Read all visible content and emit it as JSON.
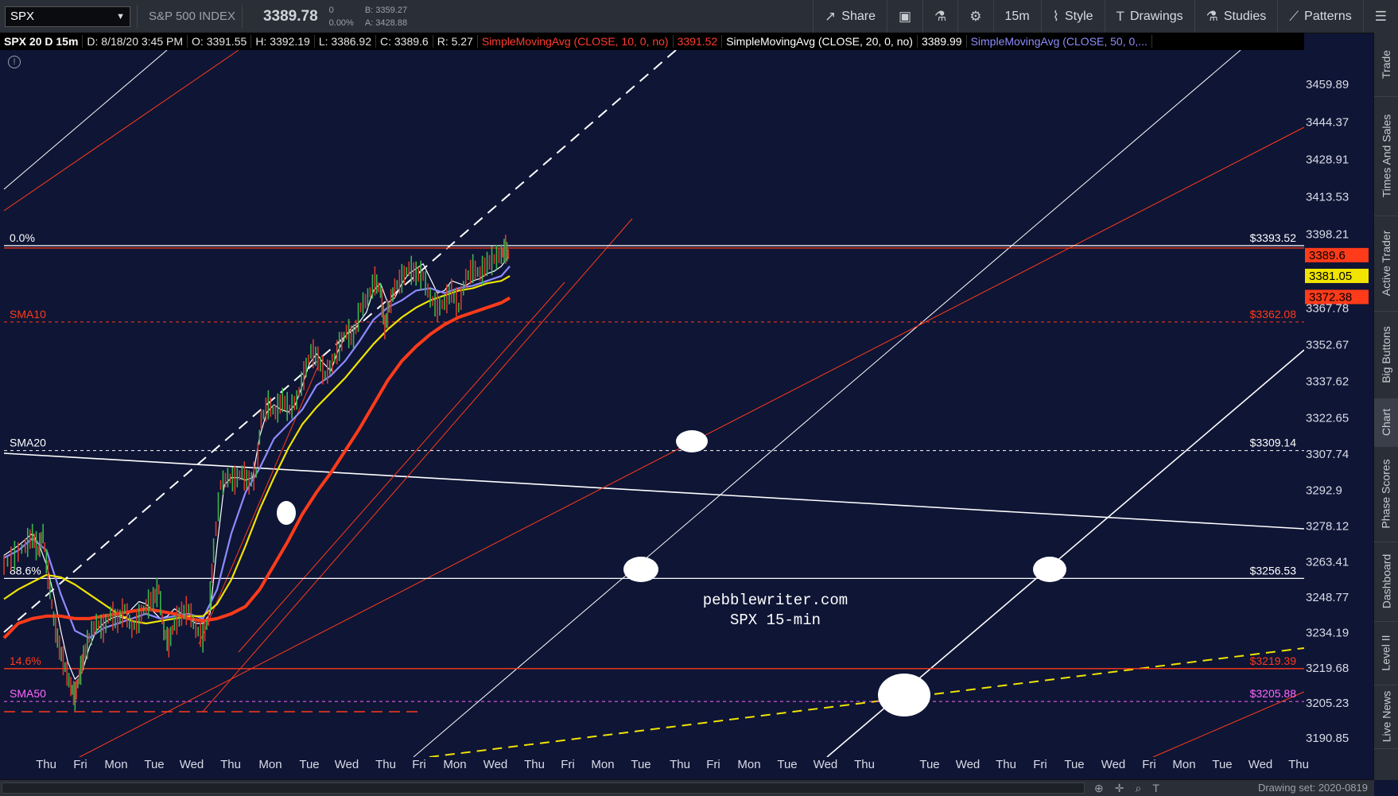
{
  "toolbar": {
    "symbol": "SPX",
    "index_name": "S&P 500 INDEX",
    "last": "3389.78",
    "change": "0",
    "change_pct": "0.00%",
    "bid": "B: 3359.27",
    "ask": "A: 3428.88",
    "share": "Share",
    "timeframe": "15m",
    "style": "Style",
    "drawings": "Drawings",
    "studies": "Studies",
    "patterns": "Patterns"
  },
  "infobar": {
    "symbol": "SPX 20 D 15m",
    "date": "D: 8/18/20 3:45 PM",
    "open": "O: 3391.55",
    "high": "H: 3392.19",
    "low": "L: 3386.92",
    "close": "C: 3389.6",
    "range": "R: 5.27",
    "sma10": "SimpleMovingAvg (CLOSE, 10, 0, no)",
    "sma10_val": "3391.52",
    "sma20": "SimpleMovingAvg (CLOSE, 20, 0, no)",
    "sma20_val": "3389.99",
    "sma50": "SimpleMovingAvg (CLOSE, 50, 0,..."
  },
  "watermark": {
    "line1": "pebblewriter.com",
    "line2": "SPX 15-min"
  },
  "rail": [
    "Trade",
    "Times And Sales",
    "Active Trader",
    "Big Buttons",
    "Chart",
    "Phase Scores",
    "Dashboard",
    "Level II",
    "Live News"
  ],
  "status": {
    "drawing_set": "Drawing set: 2020-0819"
  },
  "colors": {
    "background": "#0f1535",
    "sma10": "#ff3b1a",
    "sma20": "#ffffff",
    "sma50": "#ffffff",
    "sma_yellow": "#f0e400",
    "sma_blue": "#8c8cff",
    "price_tag_red": "#ff3b1a",
    "price_tag_yellow": "#f0e400"
  },
  "chart_data": {
    "type": "line",
    "y_ticks": [
      3459.89,
      3444.37,
      3428.91,
      3413.53,
      3398.21,
      3367.78,
      3352.67,
      3337.62,
      3322.65,
      3307.74,
      3292.9,
      3278.12,
      3263.41,
      3248.77,
      3234.19,
      3219.68,
      3205.23,
      3190.85
    ],
    "ylim": [
      3183,
      3474
    ],
    "x_ticks": [
      "Thu",
      "Fri",
      "Mon",
      "Tue",
      "Wed",
      "Thu",
      "Mon",
      "Tue",
      "Wed",
      "Thu",
      "Fri",
      "Mon",
      "Wed",
      "Thu",
      "Fri",
      "Mon",
      "Tue",
      "Thu",
      "Fri",
      "Mon",
      "Tue",
      "Wed",
      "Thu",
      "Tue",
      "Wed",
      "Thu",
      "Fri",
      "Tue",
      "Wed",
      "Fri",
      "Mon",
      "Tue",
      "Wed",
      "Thu"
    ],
    "price_tags": [
      {
        "value": 3389.6,
        "label": "3389.6",
        "color": "#ff3b1a"
      },
      {
        "value": 3381.05,
        "label": "3381.05",
        "color": "#f0e400"
      },
      {
        "value": 3372.38,
        "label": "3372.38",
        "color": "#ff3b1a"
      }
    ],
    "levels": [
      {
        "value": 3393.52,
        "label": "$3393.52",
        "left_label": "0.0%",
        "color": "#ffffff",
        "style": "solid"
      },
      {
        "value": 3362.08,
        "label": "$3362.08",
        "left_label": "SMA10",
        "color": "#ff3b1a",
        "style": "dashed"
      },
      {
        "value": 3309.14,
        "label": "$3309.14",
        "left_label": "SMA20",
        "color": "#ffffff",
        "style": "dashed"
      },
      {
        "value": 3256.53,
        "label": "$3256.53",
        "left_label": "88.6%",
        "color": "#ffffff",
        "style": "solid"
      },
      {
        "value": 3219.39,
        "label": "$3219.39",
        "left_label": "14.6%",
        "color": "#ff3b1a",
        "style": "solid"
      },
      {
        "value": 3205.88,
        "label": "$3205.88",
        "left_label": "SMA50",
        "color": "#ff66ff",
        "style": "dashed"
      }
    ],
    "series": [
      {
        "name": "SMA10",
        "color": "#ffffff",
        "points": [
          [
            0,
            3266
          ],
          [
            20,
            3270
          ],
          [
            40,
            3275
          ],
          [
            50,
            3270
          ],
          [
            60,
            3262
          ],
          [
            70,
            3250
          ],
          [
            80,
            3235
          ],
          [
            90,
            3222
          ],
          [
            100,
            3215
          ],
          [
            110,
            3218
          ],
          [
            120,
            3228
          ],
          [
            130,
            3235
          ],
          [
            140,
            3238
          ],
          [
            150,
            3240
          ],
          [
            160,
            3241
          ],
          [
            170,
            3240
          ],
          [
            180,
            3244
          ],
          [
            190,
            3247
          ],
          [
            200,
            3246
          ],
          [
            210,
            3243
          ],
          [
            220,
            3240
          ],
          [
            230,
            3241
          ],
          [
            240,
            3244
          ],
          [
            250,
            3242
          ],
          [
            260,
            3240
          ],
          [
            270,
            3238
          ],
          [
            280,
            3238
          ],
          [
            290,
            3242
          ],
          [
            300,
            3270
          ],
          [
            310,
            3295
          ],
          [
            320,
            3298
          ],
          [
            330,
            3298
          ],
          [
            340,
            3297
          ],
          [
            350,
            3298
          ],
          [
            360,
            3315
          ],
          [
            370,
            3325
          ],
          [
            380,
            3328
          ],
          [
            390,
            3326
          ],
          [
            400,
            3325
          ],
          [
            410,
            3328
          ],
          [
            420,
            3336
          ],
          [
            430,
            3345
          ],
          [
            440,
            3349
          ],
          [
            450,
            3345
          ],
          [
            460,
            3342
          ],
          [
            470,
            3350
          ],
          [
            480,
            3356
          ],
          [
            490,
            3360
          ],
          [
            500,
            3362
          ],
          [
            510,
            3366
          ],
          [
            520,
            3375
          ],
          [
            530,
            3378
          ],
          [
            540,
            3370
          ],
          [
            550,
            3372
          ],
          [
            560,
            3378
          ],
          [
            570,
            3382
          ],
          [
            580,
            3384
          ],
          [
            590,
            3386
          ],
          [
            600,
            3380
          ],
          [
            610,
            3374
          ],
          [
            620,
            3375
          ],
          [
            630,
            3379
          ],
          [
            640,
            3378
          ],
          [
            650,
            3377
          ],
          [
            660,
            3379
          ],
          [
            670,
            3380
          ],
          [
            680,
            3382
          ],
          [
            690,
            3383
          ],
          [
            700,
            3385
          ],
          [
            710,
            3389
          ]
        ]
      },
      {
        "name": "SMA20",
        "color": "#8c8cff",
        "points": [
          [
            0,
            3265
          ],
          [
            20,
            3268
          ],
          [
            40,
            3273
          ],
          [
            60,
            3268
          ],
          [
            80,
            3250
          ],
          [
            100,
            3235
          ],
          [
            120,
            3232
          ],
          [
            140,
            3236
          ],
          [
            160,
            3238
          ],
          [
            180,
            3240
          ],
          [
            200,
            3242
          ],
          [
            220,
            3240
          ],
          [
            240,
            3241
          ],
          [
            260,
            3242
          ],
          [
            280,
            3240
          ],
          [
            300,
            3252
          ],
          [
            320,
            3275
          ],
          [
            340,
            3292
          ],
          [
            360,
            3302
          ],
          [
            380,
            3314
          ],
          [
            400,
            3320
          ],
          [
            420,
            3326
          ],
          [
            440,
            3336
          ],
          [
            460,
            3340
          ],
          [
            480,
            3346
          ],
          [
            500,
            3354
          ],
          [
            520,
            3363
          ],
          [
            540,
            3368
          ],
          [
            560,
            3371
          ],
          [
            580,
            3375
          ],
          [
            600,
            3376
          ],
          [
            620,
            3374
          ],
          [
            640,
            3376
          ],
          [
            660,
            3377
          ],
          [
            680,
            3379
          ],
          [
            700,
            3381
          ],
          [
            712,
            3385
          ]
        ]
      },
      {
        "name": "SMA50",
        "color": "#f0e400",
        "points": [
          [
            0,
            3248
          ],
          [
            20,
            3252
          ],
          [
            40,
            3255
          ],
          [
            60,
            3258
          ],
          [
            80,
            3257
          ],
          [
            100,
            3254
          ],
          [
            120,
            3250
          ],
          [
            140,
            3246
          ],
          [
            160,
            3242
          ],
          [
            180,
            3239
          ],
          [
            200,
            3238
          ],
          [
            220,
            3239
          ],
          [
            240,
            3240
          ],
          [
            260,
            3241
          ],
          [
            280,
            3241
          ],
          [
            300,
            3246
          ],
          [
            320,
            3256
          ],
          [
            340,
            3270
          ],
          [
            360,
            3285
          ],
          [
            380,
            3298
          ],
          [
            400,
            3310
          ],
          [
            420,
            3320
          ],
          [
            440,
            3327
          ],
          [
            460,
            3333
          ],
          [
            480,
            3339
          ],
          [
            500,
            3346
          ],
          [
            520,
            3353
          ],
          [
            540,
            3359
          ],
          [
            560,
            3364
          ],
          [
            580,
            3368
          ],
          [
            600,
            3371
          ],
          [
            620,
            3373
          ],
          [
            640,
            3375
          ],
          [
            660,
            3376
          ],
          [
            680,
            3378
          ],
          [
            700,
            3379
          ],
          [
            712,
            3381
          ]
        ]
      },
      {
        "name": "SMA200",
        "color": "#ff3b1a",
        "points": [
          [
            0,
            3232
          ],
          [
            20,
            3238
          ],
          [
            40,
            3240
          ],
          [
            60,
            3241
          ],
          [
            80,
            3241
          ],
          [
            100,
            3240
          ],
          [
            120,
            3240
          ],
          [
            140,
            3241
          ],
          [
            160,
            3242
          ],
          [
            180,
            3243
          ],
          [
            200,
            3244
          ],
          [
            220,
            3243
          ],
          [
            240,
            3242
          ],
          [
            260,
            3240
          ],
          [
            280,
            3239
          ],
          [
            300,
            3240
          ],
          [
            320,
            3242
          ],
          [
            340,
            3245
          ],
          [
            360,
            3252
          ],
          [
            380,
            3262
          ],
          [
            400,
            3272
          ],
          [
            420,
            3283
          ],
          [
            440,
            3292
          ],
          [
            460,
            3300
          ],
          [
            480,
            3309
          ],
          [
            500,
            3318
          ],
          [
            520,
            3328
          ],
          [
            540,
            3338
          ],
          [
            560,
            3346
          ],
          [
            580,
            3352
          ],
          [
            600,
            3357
          ],
          [
            620,
            3361
          ],
          [
            640,
            3364
          ],
          [
            660,
            3366
          ],
          [
            680,
            3368
          ],
          [
            700,
            3370
          ],
          [
            712,
            3372
          ]
        ]
      }
    ],
    "price_path": [
      [
        0,
        3262
      ],
      [
        15,
        3266
      ],
      [
        30,
        3270
      ],
      [
        40,
        3274
      ],
      [
        48,
        3268
      ],
      [
        55,
        3275
      ],
      [
        62,
        3258
      ],
      [
        70,
        3240
      ],
      [
        78,
        3228
      ],
      [
        86,
        3220
      ],
      [
        94,
        3212
      ],
      [
        100,
        3208
      ],
      [
        106,
        3216
      ],
      [
        112,
        3224
      ],
      [
        120,
        3232
      ],
      [
        130,
        3238
      ],
      [
        140,
        3236
      ],
      [
        150,
        3242
      ],
      [
        160,
        3239
      ],
      [
        170,
        3244
      ],
      [
        180,
        3236
      ],
      [
        190,
        3240
      ],
      [
        200,
        3245
      ],
      [
        210,
        3248
      ],
      [
        218,
        3252
      ],
      [
        225,
        3235
      ],
      [
        232,
        3230
      ],
      [
        240,
        3238
      ],
      [
        250,
        3242
      ],
      [
        260,
        3244
      ],
      [
        270,
        3236
      ],
      [
        280,
        3232
      ],
      [
        288,
        3240
      ],
      [
        295,
        3268
      ],
      [
        305,
        3295
      ],
      [
        315,
        3298
      ],
      [
        325,
        3297
      ],
      [
        335,
        3300
      ],
      [
        345,
        3296
      ],
      [
        355,
        3300
      ],
      [
        362,
        3322
      ],
      [
        372,
        3328
      ],
      [
        382,
        3325
      ],
      [
        392,
        3330
      ],
      [
        402,
        3326
      ],
      [
        412,
        3330
      ],
      [
        422,
        3340
      ],
      [
        432,
        3350
      ],
      [
        442,
        3347
      ],
      [
        452,
        3340
      ],
      [
        462,
        3345
      ],
      [
        472,
        3352
      ],
      [
        482,
        3358
      ],
      [
        492,
        3356
      ],
      [
        502,
        3368
      ],
      [
        512,
        3372
      ],
      [
        522,
        3379
      ],
      [
        530,
        3375
      ],
      [
        536,
        3360
      ],
      [
        542,
        3368
      ],
      [
        550,
        3376
      ],
      [
        560,
        3380
      ],
      [
        570,
        3384
      ],
      [
        580,
        3382
      ],
      [
        590,
        3381
      ],
      [
        600,
        3372
      ],
      [
        610,
        3368
      ],
      [
        620,
        3370
      ],
      [
        630,
        3375
      ],
      [
        640,
        3368
      ],
      [
        650,
        3380
      ],
      [
        660,
        3384
      ],
      [
        670,
        3382
      ],
      [
        680,
        3386
      ],
      [
        690,
        3388
      ],
      [
        700,
        3390
      ],
      [
        706,
        3392
      ],
      [
        712,
        3389
      ]
    ]
  }
}
